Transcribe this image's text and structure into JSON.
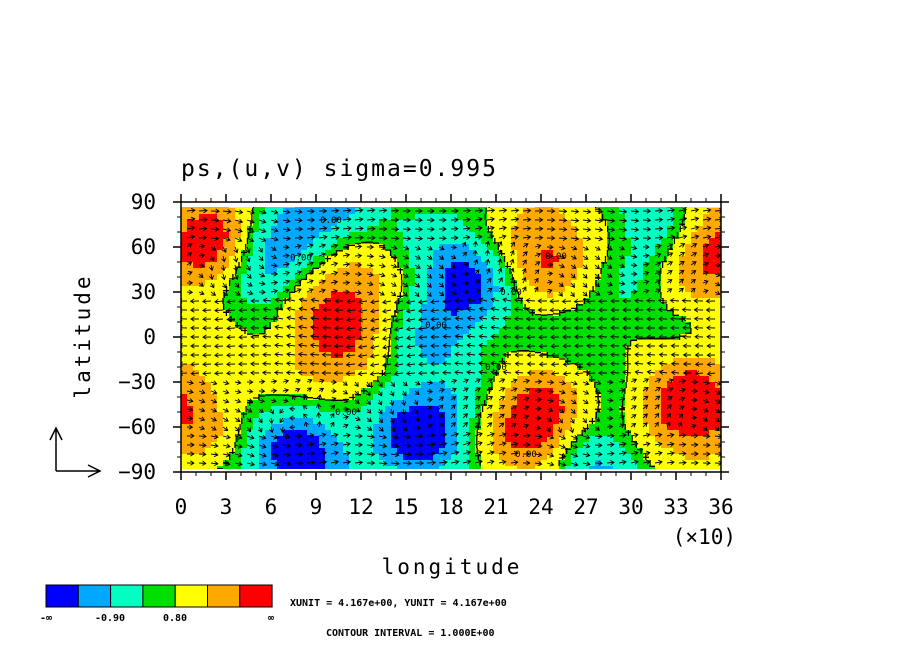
{
  "chart_data": {
    "type": "heatmap",
    "title": "ps,(u,v) sigma=0.995",
    "xlabel": "longitude",
    "ylabel": "latitude",
    "x_multiplier_label": "(×10)",
    "xlim": [
      0,
      36
    ],
    "ylim": [
      -90,
      90
    ],
    "x_ticks": [
      0,
      3,
      6,
      9,
      12,
      15,
      18,
      21,
      24,
      27,
      30,
      33,
      36
    ],
    "y_ticks": [
      90,
      60,
      30,
      0,
      -30,
      -60,
      -90
    ],
    "grid": false,
    "colorbar": {
      "colors": [
        "#0000ff",
        "#00a8ff",
        "#00ffc0",
        "#00e000",
        "#ffff00",
        "#ffa800",
        "#ff0000"
      ],
      "labels": [
        "-∞",
        "-0.90",
        "0.80",
        "∞"
      ]
    },
    "contour_labels": [
      "0.00",
      "0.00",
      "0.00",
      "0.00",
      "0.00",
      "0.00",
      "0.00",
      "0.00"
    ],
    "unit_text": "XUNIT = 4.167e+00, YUNIT = 4.167e+00",
    "contour_interval_text": "CONTOUR INTERVAL = 1.000E+00",
    "vector_key_visible": true,
    "features": [
      {
        "lon": 2,
        "lat": 60,
        "value": 2.5
      },
      {
        "lon": 35,
        "lat": 58,
        "value": 2.5
      },
      {
        "lon": 24,
        "lat": 57,
        "value": 2.0
      },
      {
        "lon": 24,
        "lat": -60,
        "value": 3.0
      },
      {
        "lon": 34,
        "lat": -48,
        "value": 2.5
      },
      {
        "lon": 0,
        "lat": -48,
        "value": 1.8
      },
      {
        "lon": 11,
        "lat": 34,
        "value": 1.8
      },
      {
        "lon": 11,
        "lat": -26,
        "value": 1.4
      },
      {
        "lon": 8,
        "lat": 16,
        "value": 1.2
      },
      {
        "lon": 6,
        "lat": 44,
        "value": -2.5
      },
      {
        "lon": 19,
        "lat": 40,
        "value": -2.2
      },
      {
        "lon": 16,
        "lat": -62,
        "value": -2.5
      },
      {
        "lon": 8,
        "lat": -80,
        "value": -2.5
      },
      {
        "lon": 27,
        "lat": -82,
        "value": -2.0
      },
      {
        "lon": 10,
        "lat": 84,
        "value": -1.8
      },
      {
        "lon": 32,
        "lat": 72,
        "value": -1.5
      },
      {
        "lon": 17,
        "lat": 0,
        "value": -1.0
      },
      {
        "lon": 27,
        "lat": 0,
        "value": -0.5
      },
      {
        "lon": 12,
        "lat": -46,
        "value": -0.4
      },
      {
        "lon": 33,
        "lat": 30,
        "value": -0.3
      }
    ]
  }
}
